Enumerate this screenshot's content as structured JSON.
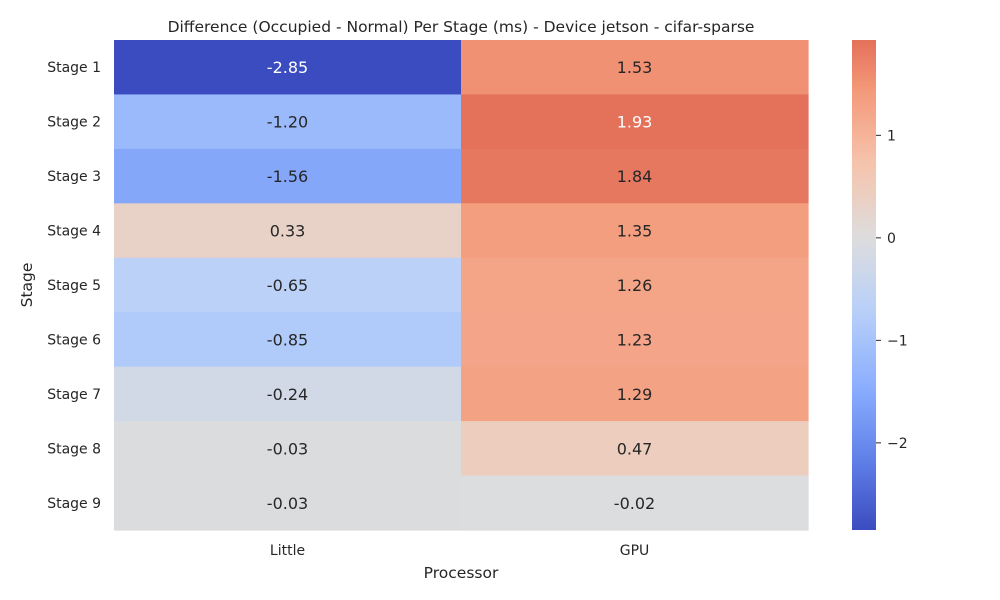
{
  "chart_data": {
    "type": "heatmap",
    "title": "Difference (Occupied - Normal) Per Stage (ms) - Device jetson - cifar-sparse",
    "xlabel": "Processor",
    "ylabel": "Stage",
    "x_categories": [
      "Little",
      "GPU"
    ],
    "y_categories": [
      "Stage 1",
      "Stage 2",
      "Stage 3",
      "Stage 4",
      "Stage 5",
      "Stage 6",
      "Stage 7",
      "Stage 8",
      "Stage 9"
    ],
    "values": [
      [
        -2.85,
        1.53
      ],
      [
        -1.2,
        1.93
      ],
      [
        -1.56,
        1.84
      ],
      [
        0.33,
        1.35
      ],
      [
        -0.65,
        1.26
      ],
      [
        -0.85,
        1.23
      ],
      [
        -0.24,
        1.29
      ],
      [
        -0.03,
        0.47
      ],
      [
        -0.03,
        -0.02
      ]
    ],
    "cell_labels": [
      [
        "-2.85",
        "1.53"
      ],
      [
        "-1.20",
        "1.93"
      ],
      [
        "-1.56",
        "1.84"
      ],
      [
        "0.33",
        "1.35"
      ],
      [
        "-0.65",
        "1.26"
      ],
      [
        "-0.85",
        "1.23"
      ],
      [
        "-0.24",
        "1.29"
      ],
      [
        "-0.03",
        "0.47"
      ],
      [
        "-0.03",
        "-0.02"
      ]
    ],
    "colormap": "coolwarm",
    "center": 0,
    "vmin": -2.85,
    "vmax": 1.93,
    "colorbar_ticks": [
      1,
      0,
      -1,
      -2
    ],
    "colorbar_tick_labels": [
      "1",
      "0",
      "−1",
      "−2"
    ]
  }
}
